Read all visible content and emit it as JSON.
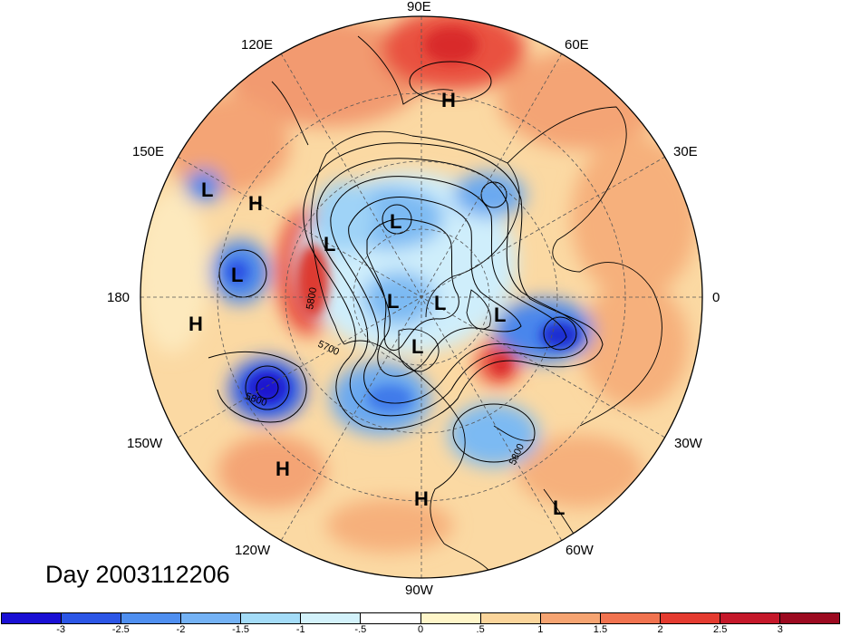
{
  "map": {
    "projection": "north-polar-stereographic",
    "longitude_labels": {
      "lon_90E": "90E",
      "lon_60E": "60E",
      "lon_120E": "120E",
      "lon_30E": "30E",
      "lon_150E": "150E",
      "lon_0": "0",
      "lon_180": "180",
      "lon_30W": "30W",
      "lon_150W": "150W",
      "lon_60W": "60W",
      "lon_120W": "120W",
      "lon_90W": "90W"
    },
    "pressure_centers": [
      {
        "label": "H"
      },
      {
        "label": "L"
      },
      {
        "label": "H"
      },
      {
        "label": "L"
      },
      {
        "label": "L"
      },
      {
        "label": "L"
      },
      {
        "label": "H"
      },
      {
        "label": "L"
      },
      {
        "label": "L"
      },
      {
        "label": "L"
      },
      {
        "label": "L"
      },
      {
        "label": "H"
      },
      {
        "label": "H"
      },
      {
        "label": "L"
      }
    ],
    "contour_labels": [
      "5800",
      "5700",
      "5800",
      "5800"
    ],
    "colors": {
      "land_outline": "#000000",
      "grid_line": "#555555"
    }
  },
  "date_label": "Day 2003112206",
  "colorbar": {
    "tick_labels": [
      "-3",
      "-2.5",
      "-2",
      "-1.5",
      "-1",
      "-.5",
      "0",
      ".5",
      "1",
      "1.5",
      "2",
      "2.5",
      "3"
    ],
    "colors": [
      "#1a0fd4",
      "#2c56e6",
      "#4f8ff0",
      "#74b2f5",
      "#a4dcf8",
      "#d3f2fb",
      "#ffffff",
      "#fff6c9",
      "#fbd59b",
      "#f6a472",
      "#f17350",
      "#e43b30",
      "#c5182a",
      "#9c0a20"
    ]
  }
}
